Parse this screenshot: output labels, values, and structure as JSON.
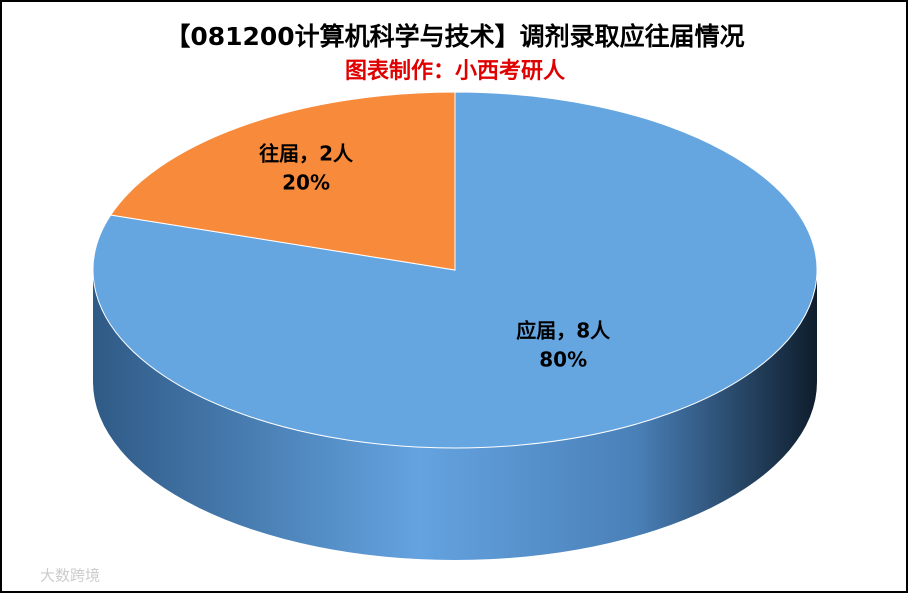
{
  "chart_data": {
    "type": "pie",
    "title": "【081200计算机科学与技术】调剂录取应往届情况",
    "subtitle": "图表制作：小西考研人",
    "values": [
      8,
      2
    ],
    "value_labels": [
      "应届，8人",
      "往届，2人"
    ],
    "percents": [
      80,
      20
    ],
    "percent_labels": [
      "80%",
      "20%"
    ],
    "colors": [
      "#65a6e1",
      "#f88b3b"
    ],
    "watermark": "大数跨境"
  }
}
